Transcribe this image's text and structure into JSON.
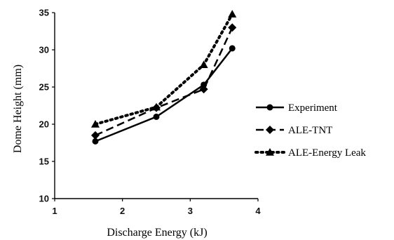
{
  "chart_data": {
    "type": "line",
    "title": "",
    "xlabel": "Discharge Energy (kJ)",
    "ylabel": "Dome Height (mm)",
    "xlim": [
      1,
      4
    ],
    "ylim": [
      10,
      35
    ],
    "x_ticks": [
      "1",
      "2",
      "3",
      "4"
    ],
    "y_ticks": [
      "10",
      "15",
      "20",
      "25",
      "30",
      "35"
    ],
    "grid": false,
    "legend_position": "right",
    "series": [
      {
        "name": "Experiment",
        "marker": "circle",
        "line_style": "solid",
        "x": [
          1.6,
          2.5,
          3.2,
          3.62
        ],
        "y": [
          17.7,
          21.0,
          25.3,
          30.2
        ]
      },
      {
        "name": "ALE-TNT",
        "marker": "diamond",
        "line_style": "dashed",
        "x": [
          1.6,
          2.5,
          3.2,
          3.62
        ],
        "y": [
          18.5,
          22.2,
          24.7,
          33.0
        ]
      },
      {
        "name": "ALE-Energy Leak",
        "marker": "triangle",
        "line_style": "dotted",
        "x": [
          1.6,
          2.5,
          3.2,
          3.62
        ],
        "y": [
          20.0,
          22.3,
          28.0,
          34.8
        ]
      }
    ]
  }
}
